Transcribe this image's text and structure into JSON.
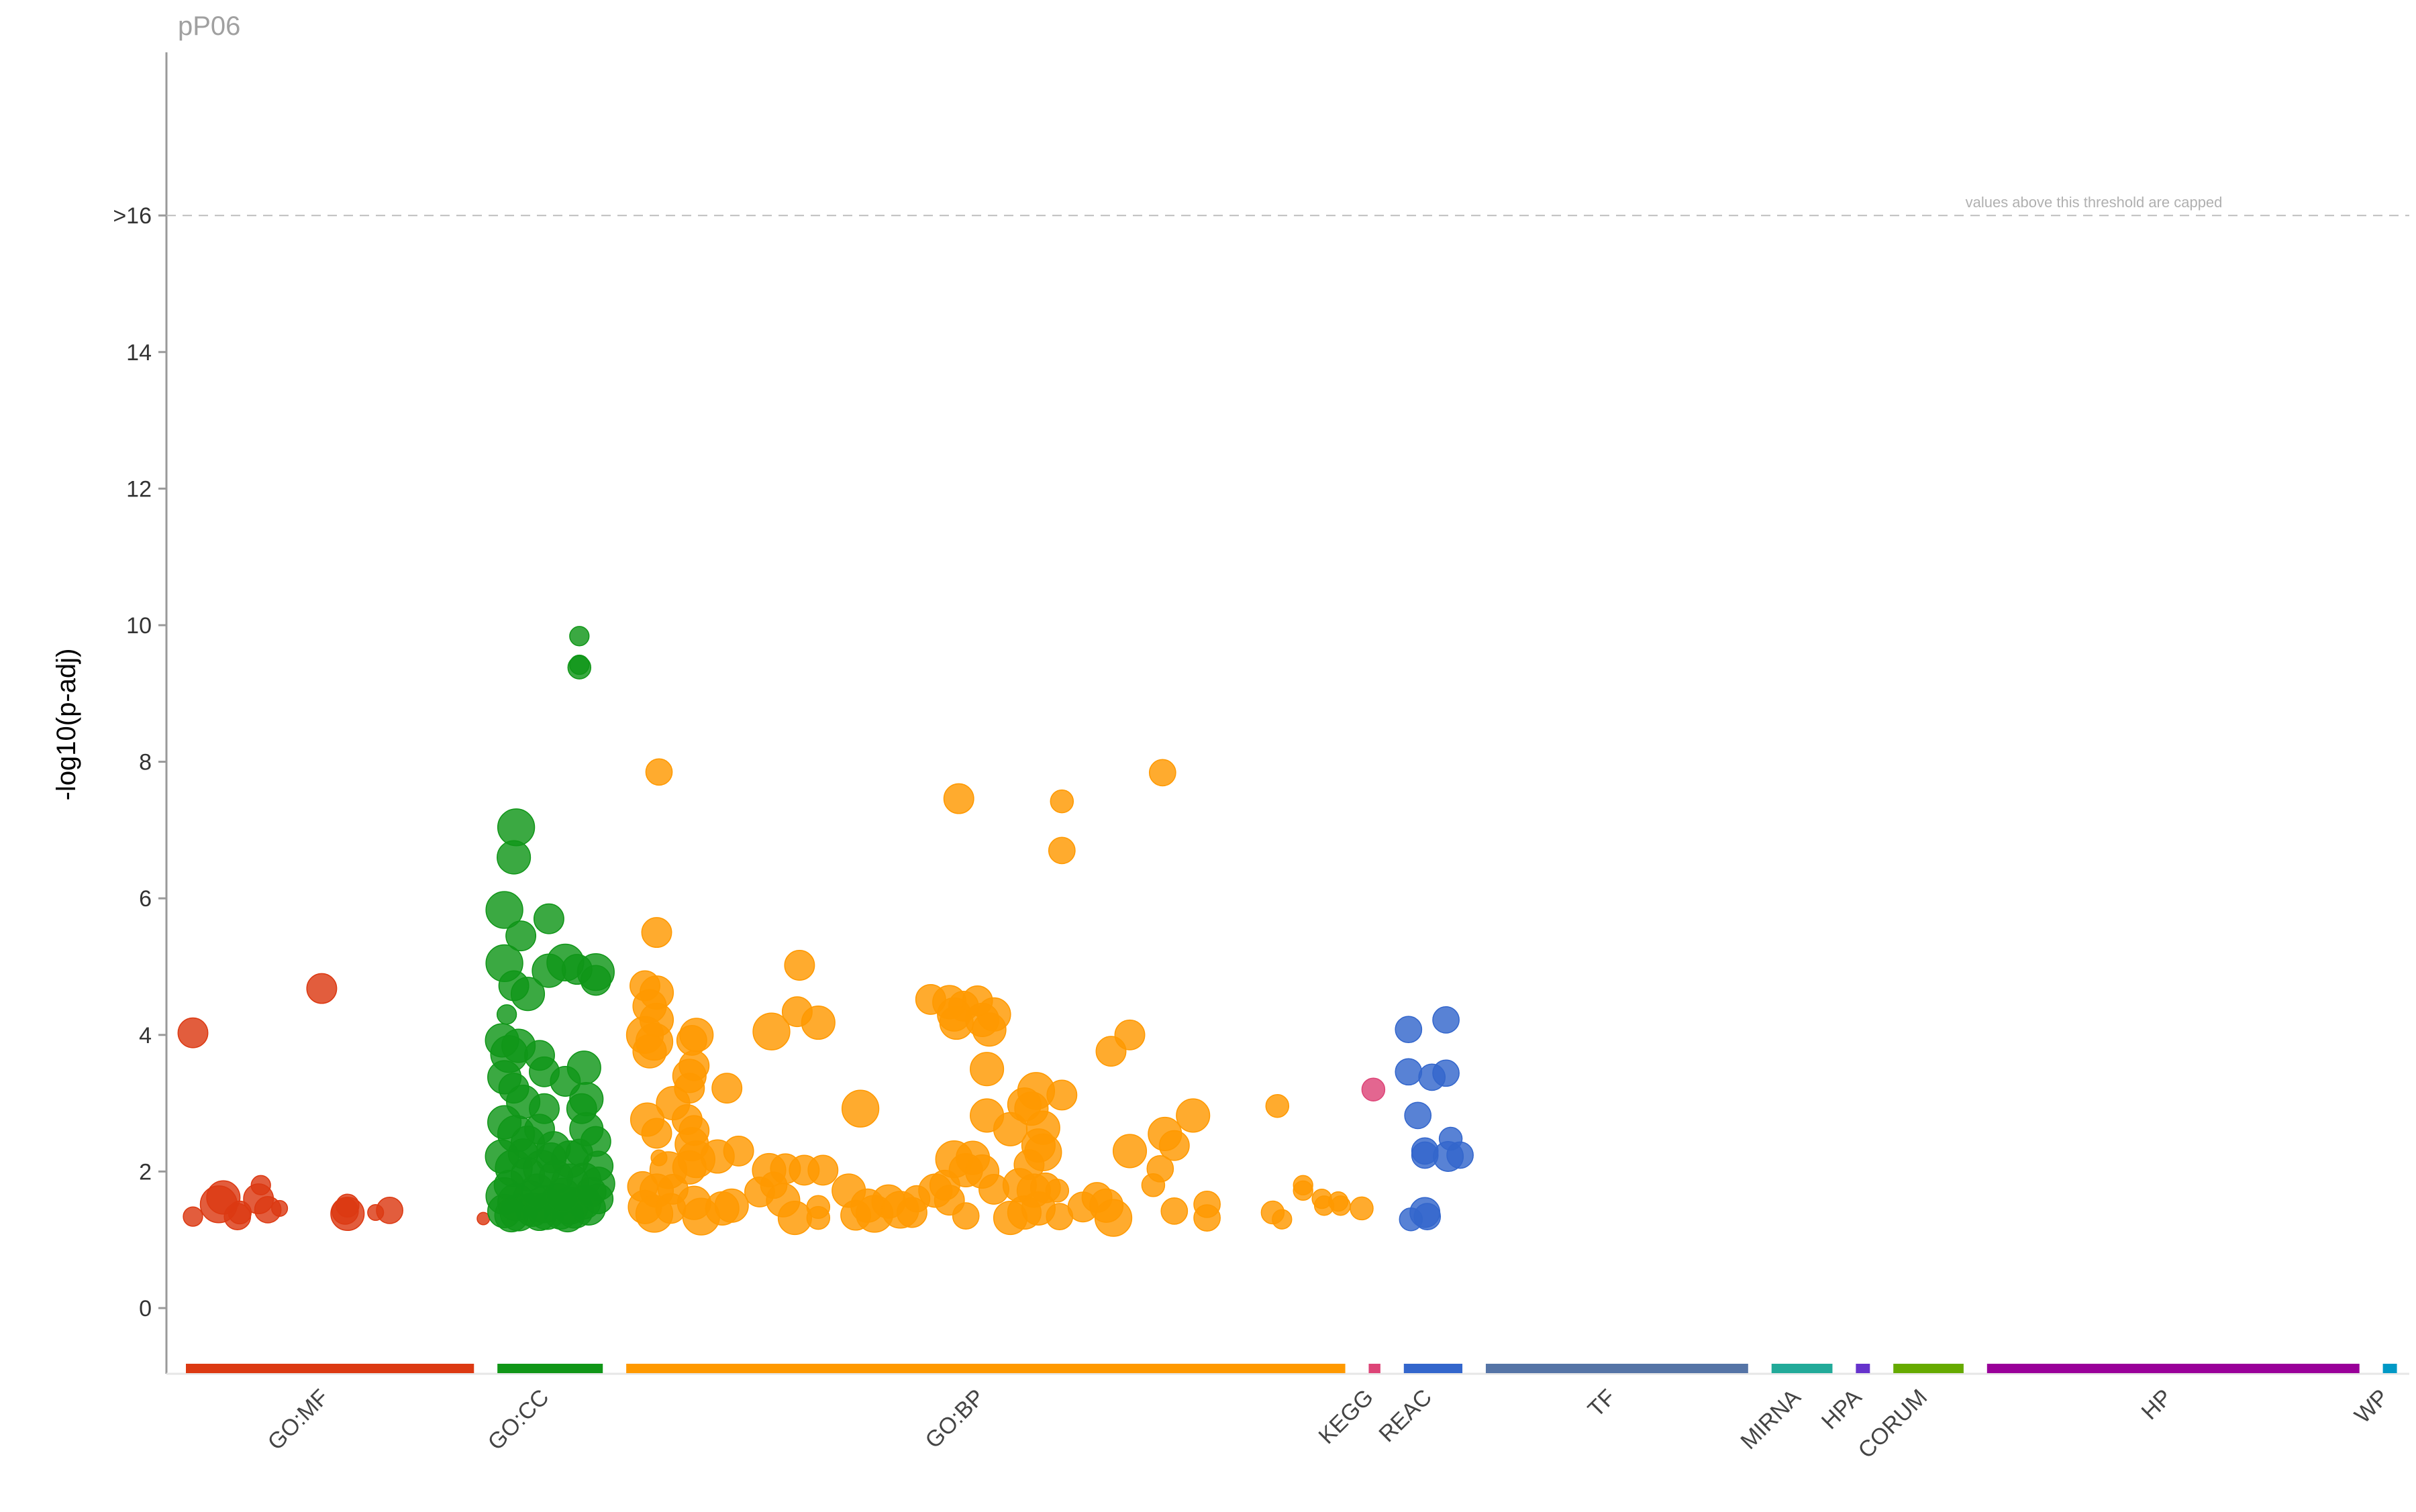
{
  "chart_data": {
    "type": "scatter",
    "title": "pP06",
    "ylabel": "-log10(p-adj)",
    "xlabel": "",
    "ylim": [
      -1,
      19
    ],
    "yticks": [
      {
        "value": 0,
        "label": "0"
      },
      {
        "value": 2,
        "label": "2"
      },
      {
        "value": 4,
        "label": "4"
      },
      {
        "value": 6,
        "label": "6"
      },
      {
        "value": 8,
        "label": "8"
      },
      {
        "value": 10,
        "label": "10"
      },
      {
        "value": 12,
        "label": "12"
      },
      {
        "value": 14,
        "label": "14"
      },
      {
        "value": 16,
        "label": ">16"
      }
    ],
    "threshold": {
      "value": 16,
      "note": "values above this threshold are capped"
    },
    "grid": false,
    "categories": [
      {
        "name": "GO:MF",
        "color": "#dc3912",
        "start": 0.0,
        "end": 12.3
      },
      {
        "name": "GO:CC",
        "color": "#109618",
        "start": 13.3,
        "end": 17.8
      },
      {
        "name": "GO:BP",
        "color": "#ff9900",
        "start": 18.8,
        "end": 49.5
      },
      {
        "name": "KEGG",
        "color": "#dd4477",
        "start": 50.5,
        "end": 51.0
      },
      {
        "name": "REAC",
        "color": "#3366cc",
        "start": 52.0,
        "end": 54.5
      },
      {
        "name": "TF",
        "color": "#5574a6",
        "start": 55.5,
        "end": 66.7
      },
      {
        "name": "MIRNA",
        "color": "#22aa99",
        "start": 67.7,
        "end": 70.3
      },
      {
        "name": "HPA",
        "color": "#6633cc",
        "start": 71.3,
        "end": 71.9
      },
      {
        "name": "CORUM",
        "color": "#66aa00",
        "start": 72.9,
        "end": 75.9
      },
      {
        "name": "HP",
        "color": "#990099",
        "start": 76.9,
        "end": 92.8
      },
      {
        "name": "WP",
        "color": "#0099c6",
        "start": 93.8,
        "end": 94.4
      }
    ],
    "series": [
      {
        "name": "GO:MF",
        "points": [
          [
            0.3,
            4.03,
            7
          ],
          [
            0.3,
            1.34,
            4
          ],
          [
            1.4,
            1.52,
            9
          ],
          [
            1.6,
            1.62,
            8
          ],
          [
            2.2,
            1.34,
            6
          ],
          [
            2.3,
            1.4,
            5
          ],
          [
            3.1,
            1.6,
            7
          ],
          [
            3.2,
            1.8,
            4
          ],
          [
            3.5,
            1.44,
            6
          ],
          [
            4.0,
            1.46,
            3
          ],
          [
            5.8,
            4.68,
            7
          ],
          [
            6.8,
            1.42,
            6
          ],
          [
            6.9,
            1.38,
            8
          ],
          [
            6.9,
            1.5,
            5
          ],
          [
            8.7,
            1.43,
            6
          ],
          [
            12.7,
            1.31,
            2
          ],
          [
            8.1,
            1.4,
            3
          ]
        ]
      },
      {
        "name": "GO:CC",
        "points": [
          [
            16.8,
            9.84,
            4
          ],
          [
            16.8,
            9.38,
            5
          ],
          [
            16.8,
            9.42,
            4
          ],
          [
            14.1,
            7.04,
            9
          ],
          [
            14.0,
            6.6,
            8
          ],
          [
            13.6,
            5.83,
            9
          ],
          [
            14.3,
            5.45,
            7
          ],
          [
            15.5,
            5.7,
            7
          ],
          [
            13.6,
            5.05,
            9
          ],
          [
            14.0,
            4.72,
            7
          ],
          [
            14.6,
            4.6,
            8
          ],
          [
            15.5,
            4.94,
            8
          ],
          [
            16.2,
            5.06,
            9
          ],
          [
            16.7,
            4.96,
            7
          ],
          [
            17.5,
            4.92,
            9
          ],
          [
            17.5,
            4.8,
            7
          ],
          [
            13.7,
            4.3,
            4
          ],
          [
            13.5,
            3.92,
            8
          ],
          [
            13.8,
            3.72,
            9
          ],
          [
            14.2,
            3.84,
            8
          ],
          [
            15.1,
            3.7,
            7
          ],
          [
            15.3,
            3.46,
            7
          ],
          [
            13.6,
            3.38,
            8
          ],
          [
            14.0,
            3.22,
            7
          ],
          [
            14.4,
            3.02,
            8
          ],
          [
            15.3,
            2.92,
            7
          ],
          [
            16.2,
            3.32,
            7
          ],
          [
            17.0,
            3.52,
            8
          ],
          [
            17.1,
            3.06,
            8
          ],
          [
            16.9,
            2.92,
            7
          ],
          [
            13.6,
            2.72,
            8
          ],
          [
            14.1,
            2.55,
            9
          ],
          [
            14.6,
            2.42,
            8
          ],
          [
            15.1,
            2.62,
            7
          ],
          [
            15.7,
            2.34,
            8
          ],
          [
            16.4,
            2.18,
            9
          ],
          [
            17.1,
            2.62,
            8
          ],
          [
            17.5,
            2.44,
            7
          ],
          [
            13.5,
            2.22,
            8
          ],
          [
            14.0,
            2.05,
            9
          ],
          [
            14.6,
            1.96,
            8
          ],
          [
            15.2,
            2.04,
            9
          ],
          [
            15.8,
            1.92,
            8
          ],
          [
            16.4,
            1.84,
            9
          ],
          [
            17.0,
            1.88,
            8
          ],
          [
            17.6,
            2.08,
            7
          ],
          [
            17.6,
            1.82,
            8
          ],
          [
            13.6,
            1.64,
            9
          ],
          [
            14.1,
            1.55,
            9
          ],
          [
            14.7,
            1.62,
            8
          ],
          [
            15.3,
            1.52,
            9
          ],
          [
            15.9,
            1.58,
            8
          ],
          [
            16.4,
            1.5,
            9
          ],
          [
            17.0,
            1.55,
            8
          ],
          [
            17.6,
            1.6,
            7
          ],
          [
            13.6,
            1.42,
            8
          ],
          [
            14.2,
            1.4,
            9
          ],
          [
            14.8,
            1.44,
            8
          ],
          [
            15.4,
            1.42,
            9
          ],
          [
            16.0,
            1.4,
            8
          ],
          [
            16.6,
            1.44,
            9
          ],
          [
            17.2,
            1.46,
            8
          ],
          [
            13.9,
            1.36,
            8
          ],
          [
            15.1,
            1.38,
            8
          ],
          [
            16.3,
            1.36,
            8
          ],
          [
            13.8,
            1.8,
            7
          ],
          [
            15.0,
            1.72,
            8
          ],
          [
            16.1,
            1.66,
            8
          ],
          [
            17.3,
            1.7,
            7
          ],
          [
            14.4,
            2.26,
            7
          ],
          [
            15.6,
            2.2,
            7
          ],
          [
            16.8,
            2.28,
            6
          ]
        ]
      },
      {
        "name": "GO:BP",
        "points": [
          [
            20.2,
            7.85,
            6
          ],
          [
            20.1,
            5.5,
            7
          ],
          [
            19.6,
            4.72,
            7
          ],
          [
            20.1,
            4.62,
            8
          ],
          [
            19.8,
            4.42,
            8
          ],
          [
            20.1,
            4.22,
            8
          ],
          [
            19.6,
            4.0,
            9
          ],
          [
            20.0,
            3.9,
            9
          ],
          [
            19.8,
            3.76,
            8
          ],
          [
            21.8,
            4.0,
            8
          ],
          [
            21.6,
            3.92,
            7
          ],
          [
            21.7,
            3.55,
            7
          ],
          [
            21.5,
            3.4,
            8
          ],
          [
            21.5,
            3.22,
            7
          ],
          [
            23.1,
            3.22,
            7
          ],
          [
            20.8,
            3.0,
            8
          ],
          [
            19.7,
            2.76,
            8
          ],
          [
            20.1,
            2.56,
            7
          ],
          [
            21.4,
            2.76,
            7
          ],
          [
            21.7,
            2.6,
            7
          ],
          [
            21.6,
            2.4,
            8
          ],
          [
            21.8,
            2.18,
            9
          ],
          [
            20.6,
            2.02,
            9
          ],
          [
            21.5,
            2.06,
            8
          ],
          [
            22.7,
            2.22,
            8
          ],
          [
            23.6,
            2.3,
            7
          ],
          [
            20.2,
            2.2,
            3
          ],
          [
            19.5,
            1.78,
            7
          ],
          [
            20.1,
            1.72,
            8
          ],
          [
            20.8,
            1.74,
            7
          ],
          [
            19.6,
            1.48,
            8
          ],
          [
            20.0,
            1.38,
            9
          ],
          [
            20.7,
            1.46,
            7
          ],
          [
            21.7,
            1.54,
            8
          ],
          [
            22.0,
            1.34,
            9
          ],
          [
            22.9,
            1.46,
            8
          ],
          [
            23.3,
            1.5,
            8
          ],
          [
            25.0,
            4.05,
            9
          ],
          [
            26.2,
            5.02,
            7
          ],
          [
            26.1,
            4.34,
            7
          ],
          [
            27.0,
            4.18,
            8
          ],
          [
            24.9,
            2.02,
            8
          ],
          [
            25.6,
            2.04,
            7
          ],
          [
            26.4,
            2.02,
            7
          ],
          [
            27.2,
            2.02,
            7
          ],
          [
            28.3,
            1.72,
            8
          ],
          [
            24.5,
            1.7,
            7
          ],
          [
            25.1,
            1.8,
            6
          ],
          [
            25.5,
            1.58,
            8
          ],
          [
            26.0,
            1.32,
            8
          ],
          [
            27.0,
            1.48,
            5
          ],
          [
            27.0,
            1.32,
            5
          ],
          [
            28.6,
            1.36,
            7
          ],
          [
            29.1,
            1.5,
            8
          ],
          [
            29.4,
            1.38,
            9
          ],
          [
            30.0,
            1.56,
            8
          ],
          [
            30.5,
            1.44,
            9
          ],
          [
            31.0,
            1.4,
            7
          ],
          [
            31.2,
            1.6,
            6
          ],
          [
            28.8,
            2.92,
            9
          ],
          [
            33.0,
            7.46,
            7
          ],
          [
            31.8,
            4.52,
            7
          ],
          [
            32.6,
            4.48,
            8
          ],
          [
            33.2,
            4.42,
            7
          ],
          [
            33.8,
            4.5,
            7
          ],
          [
            32.8,
            4.3,
            8
          ],
          [
            32.9,
            4.18,
            8
          ],
          [
            34.0,
            4.22,
            8
          ],
          [
            34.3,
            4.08,
            8
          ],
          [
            34.5,
            4.3,
            8
          ],
          [
            34.2,
            3.5,
            8
          ],
          [
            34.2,
            2.82,
            8
          ],
          [
            32.8,
            2.18,
            9
          ],
          [
            33.3,
            2.02,
            8
          ],
          [
            33.6,
            2.2,
            8
          ],
          [
            34.0,
            2.0,
            8
          ],
          [
            34.5,
            1.74,
            7
          ],
          [
            32.0,
            1.72,
            8
          ],
          [
            32.4,
            1.8,
            7
          ],
          [
            33.3,
            1.35,
            6
          ],
          [
            32.6,
            1.58,
            7
          ],
          [
            35.2,
            2.62,
            8
          ],
          [
            35.8,
            2.98,
            8
          ],
          [
            36.3,
            3.18,
            9
          ],
          [
            36.1,
            2.92,
            8
          ],
          [
            36.6,
            2.64,
            8
          ],
          [
            36.4,
            2.38,
            8
          ],
          [
            36.6,
            2.28,
            9
          ],
          [
            36.0,
            2.1,
            7
          ],
          [
            35.6,
            1.8,
            8
          ],
          [
            36.2,
            1.72,
            8
          ],
          [
            36.7,
            1.76,
            7
          ],
          [
            35.2,
            1.32,
            8
          ],
          [
            35.8,
            1.4,
            8
          ],
          [
            36.4,
            1.46,
            8
          ],
          [
            37.2,
            1.72,
            5
          ],
          [
            37.3,
            1.34,
            6
          ],
          [
            37.4,
            7.42,
            5
          ],
          [
            37.4,
            6.7,
            6
          ],
          [
            37.4,
            3.12,
            7
          ],
          [
            39.5,
            3.76,
            7
          ],
          [
            40.3,
            4.0,
            7
          ],
          [
            38.3,
            1.48,
            7
          ],
          [
            38.9,
            1.62,
            7
          ],
          [
            39.3,
            1.5,
            8
          ],
          [
            39.6,
            1.32,
            9
          ],
          [
            40.3,
            2.3,
            8
          ],
          [
            41.3,
            1.8,
            5
          ],
          [
            41.6,
            2.04,
            6
          ],
          [
            41.7,
            7.84,
            6
          ],
          [
            41.8,
            2.55,
            8
          ],
          [
            42.2,
            2.38,
            7
          ],
          [
            43.0,
            2.82,
            8
          ],
          [
            42.2,
            1.42,
            6
          ],
          [
            43.6,
            1.52,
            6
          ],
          [
            43.6,
            1.32,
            6
          ],
          [
            46.6,
            2.96,
            5
          ],
          [
            46.4,
            1.4,
            5
          ],
          [
            46.8,
            1.3,
            4
          ],
          [
            47.7,
            1.8,
            4
          ],
          [
            47.7,
            1.72,
            4
          ],
          [
            48.5,
            1.6,
            4
          ],
          [
            48.6,
            1.5,
            4
          ],
          [
            49.2,
            1.56,
            4
          ],
          [
            49.3,
            1.5,
            4
          ],
          [
            50.2,
            1.46,
            5
          ]
        ]
      },
      {
        "name": "KEGG",
        "points": [
          [
            50.7,
            3.2,
            5
          ]
        ]
      },
      {
        "name": "REAC",
        "points": [
          [
            52.2,
            4.08,
            6
          ],
          [
            53.8,
            4.22,
            6
          ],
          [
            52.2,
            3.46,
            6
          ],
          [
            53.2,
            3.38,
            6
          ],
          [
            53.8,
            3.44,
            6
          ],
          [
            52.6,
            2.82,
            6
          ],
          [
            52.9,
            2.24,
            6
          ],
          [
            52.9,
            2.3,
            6
          ],
          [
            54.0,
            2.48,
            5
          ],
          [
            53.9,
            2.22,
            7
          ],
          [
            54.4,
            2.24,
            6
          ],
          [
            52.3,
            1.3,
            5
          ],
          [
            52.9,
            1.4,
            7
          ],
          [
            53.0,
            1.34,
            6
          ]
        ]
      }
    ]
  }
}
